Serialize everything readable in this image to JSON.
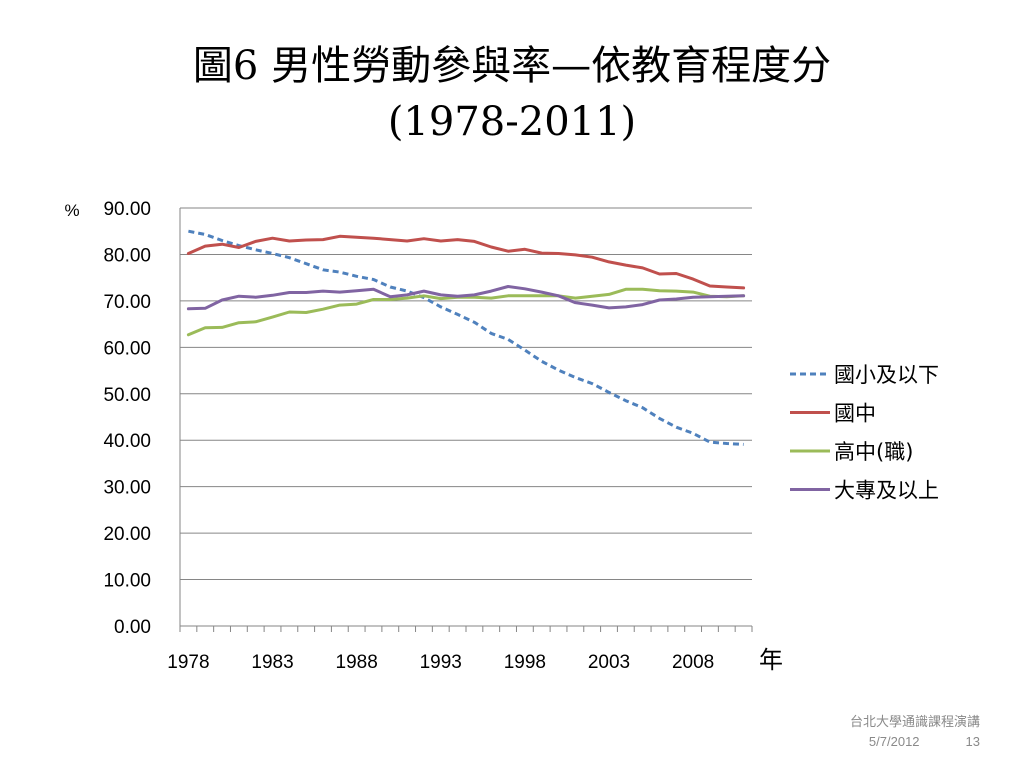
{
  "title": {
    "line1": "圖6 男性勞動參與率—依教育程度分",
    "line2": "(1978-2011)"
  },
  "footer": {
    "org": "台北大學通識課程演講",
    "date": "5/7/2012",
    "page": "13"
  },
  "colors": {
    "series_1": "#4f81bd",
    "series_2": "#c0504d",
    "series_3": "#9bbb59",
    "series_4": "#8064a2",
    "gridline": "#868686"
  },
  "chart_data": {
    "type": "line",
    "ylabel": "%",
    "xlabel": "年",
    "ylim": [
      0,
      90
    ],
    "ytick_step": 10,
    "ytick_decimals": 2,
    "x": [
      1978,
      1979,
      1980,
      1981,
      1982,
      1983,
      1984,
      1985,
      1986,
      1987,
      1988,
      1989,
      1990,
      1991,
      1992,
      1993,
      1994,
      1995,
      1996,
      1997,
      1998,
      1999,
      2000,
      2001,
      2002,
      2003,
      2004,
      2005,
      2006,
      2007,
      2008,
      2009,
      2010,
      2011
    ],
    "xticks": [
      1978,
      1983,
      1988,
      1993,
      1998,
      2003,
      2008
    ],
    "grid": true,
    "legend": "right",
    "series": [
      {
        "name": "國小及以下",
        "style": "dashed",
        "values": [
          85.0,
          84.3,
          83.0,
          81.9,
          81.0,
          80.2,
          79.3,
          78.0,
          76.7,
          76.2,
          75.3,
          74.6,
          73.0,
          72.1,
          70.7,
          68.7,
          67.1,
          65.4,
          63.0,
          61.7,
          59.4,
          57.0,
          55.1,
          53.5,
          52.2,
          50.3,
          48.5,
          47.0,
          44.7,
          42.8,
          41.5,
          39.6,
          39.3,
          39.1
        ]
      },
      {
        "name": "國中",
        "style": "solid",
        "values": [
          80.2,
          81.8,
          82.2,
          81.5,
          82.8,
          83.5,
          82.9,
          83.1,
          83.2,
          83.9,
          83.7,
          83.5,
          83.2,
          82.9,
          83.4,
          82.9,
          83.2,
          82.8,
          81.6,
          80.7,
          81.1,
          80.3,
          80.2,
          79.9,
          79.4,
          78.4,
          77.7,
          77.1,
          75.8,
          75.9,
          74.7,
          73.2,
          73.0,
          72.8
        ]
      },
      {
        "name": "高中(職)",
        "style": "solid",
        "values": [
          62.7,
          64.2,
          64.3,
          65.3,
          65.5,
          66.5,
          67.6,
          67.5,
          68.2,
          69.1,
          69.3,
          70.3,
          70.3,
          70.6,
          71.1,
          70.5,
          70.8,
          70.8,
          70.6,
          71.1,
          71.1,
          71.1,
          71.1,
          70.6,
          71.0,
          71.4,
          72.5,
          72.5,
          72.2,
          72.1,
          71.9,
          71.0,
          70.9,
          71.1
        ]
      },
      {
        "name": "大專及以上",
        "style": "solid",
        "values": [
          68.3,
          68.4,
          70.2,
          71.0,
          70.8,
          71.2,
          71.8,
          71.8,
          72.1,
          71.9,
          72.2,
          72.5,
          70.9,
          71.3,
          72.1,
          71.3,
          71.0,
          71.3,
          72.1,
          73.1,
          72.6,
          71.9,
          71.1,
          69.6,
          69.1,
          68.5,
          68.7,
          69.2,
          70.2,
          70.4,
          70.8,
          70.9,
          71.0,
          71.1
        ]
      }
    ]
  }
}
